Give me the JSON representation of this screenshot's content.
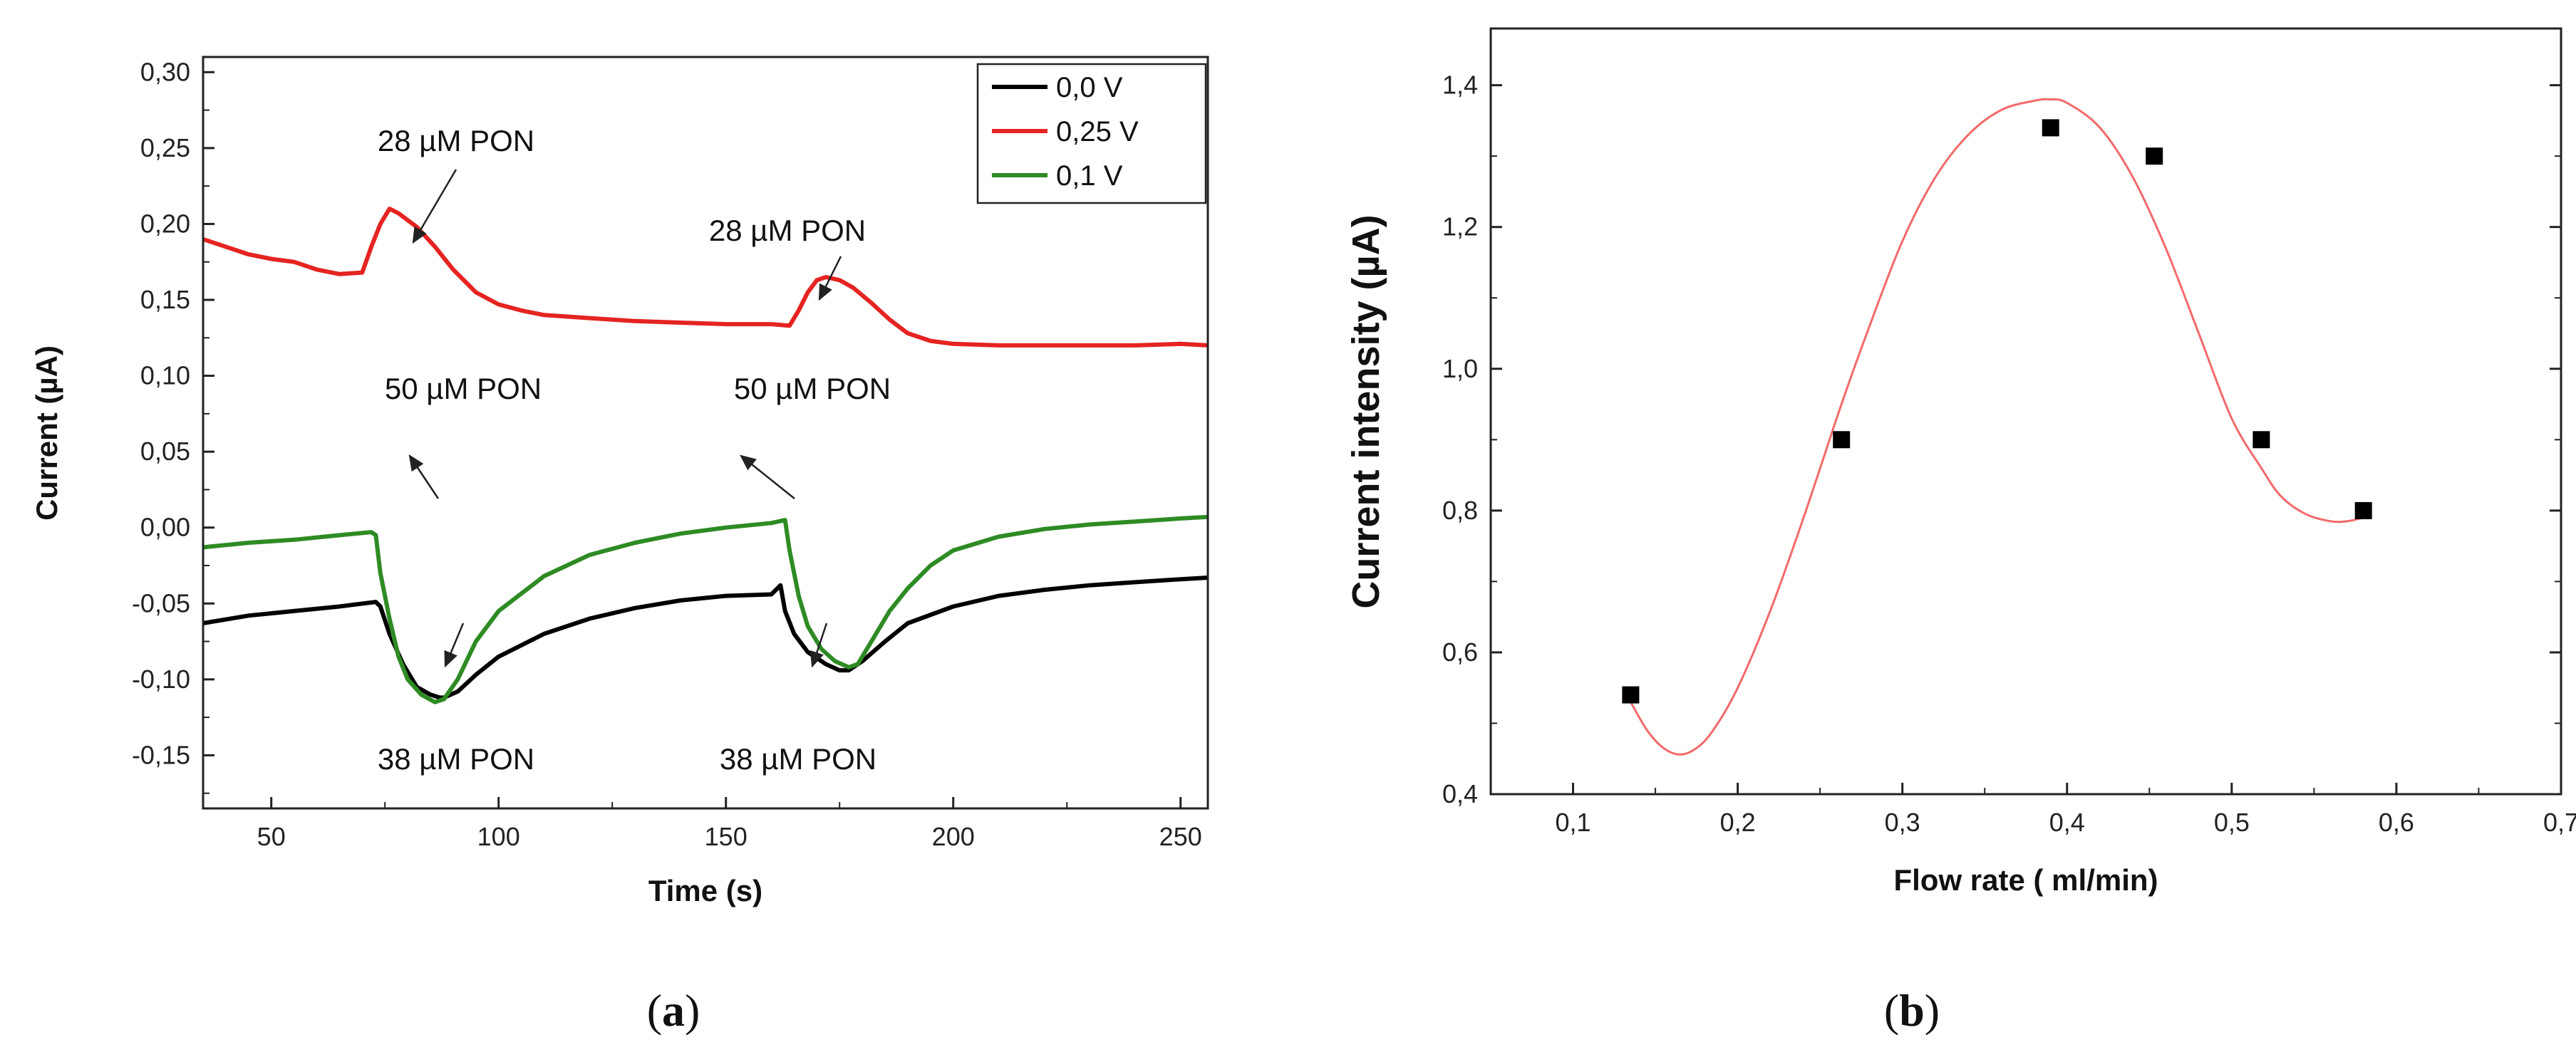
{
  "chart_data": [
    {
      "type": "line",
      "panel_label": "a",
      "xlabel": "Time (s)",
      "ylabel": "Current (µA)",
      "xlim": [
        35,
        256
      ],
      "ylim": [
        -0.185,
        0.31
      ],
      "xticks": [
        50,
        100,
        150,
        200,
        250
      ],
      "yticks": [
        -0.15,
        -0.1,
        -0.05,
        0.0,
        0.05,
        0.1,
        0.15,
        0.2,
        0.25,
        0.3
      ],
      "ytick_labels": [
        "-0,15",
        "-0,10",
        "-0,05",
        "0,00",
        "0,05",
        "0,10",
        "0,15",
        "0,20",
        "0,25",
        "0,30"
      ],
      "legend": {
        "position": "top-right",
        "entries": [
          "0,0 V",
          "0,25 V",
          "0,1 V"
        ]
      },
      "series": [
        {
          "name": "0,0 V",
          "color": "#000000",
          "x": [
            35,
            45,
            55,
            65,
            73,
            74,
            76,
            79,
            82,
            85,
            87,
            88,
            91,
            95,
            100,
            110,
            120,
            130,
            140,
            150,
            160,
            162,
            163,
            165,
            168,
            172,
            175,
            177,
            180,
            185,
            190,
            200,
            210,
            220,
            230,
            240,
            250,
            256
          ],
          "values": [
            -0.063,
            -0.058,
            -0.055,
            -0.052,
            -0.049,
            -0.052,
            -0.07,
            -0.09,
            -0.105,
            -0.11,
            -0.112,
            -0.112,
            -0.108,
            -0.097,
            -0.085,
            -0.07,
            -0.06,
            -0.053,
            -0.048,
            -0.045,
            -0.044,
            -0.038,
            -0.055,
            -0.07,
            -0.082,
            -0.09,
            -0.094,
            -0.094,
            -0.088,
            -0.075,
            -0.063,
            -0.052,
            -0.045,
            -0.041,
            -0.038,
            -0.036,
            -0.034,
            -0.033
          ]
        },
        {
          "name": "0,25 V",
          "color": "#e52421",
          "x": [
            35,
            45,
            50,
            55,
            60,
            65,
            70,
            72,
            74,
            76,
            78,
            82,
            86,
            90,
            95,
            100,
            105,
            110,
            120,
            130,
            140,
            150,
            160,
            164,
            166,
            168,
            170,
            172,
            175,
            178,
            182,
            186,
            190,
            195,
            200,
            210,
            220,
            230,
            240,
            250,
            256
          ],
          "values": [
            0.19,
            0.18,
            0.177,
            0.175,
            0.17,
            0.167,
            0.168,
            0.185,
            0.2,
            0.21,
            0.207,
            0.198,
            0.185,
            0.17,
            0.155,
            0.147,
            0.143,
            0.14,
            0.138,
            0.136,
            0.135,
            0.134,
            0.134,
            0.133,
            0.143,
            0.155,
            0.163,
            0.165,
            0.163,
            0.158,
            0.148,
            0.137,
            0.128,
            0.123,
            0.121,
            0.12,
            0.12,
            0.12,
            0.12,
            0.121,
            0.12
          ]
        },
        {
          "name": "0,1 V",
          "color": "#2e8b24",
          "x": [
            35,
            45,
            55,
            65,
            72,
            73,
            74,
            76,
            78,
            80,
            83,
            86,
            88,
            91,
            95,
            100,
            110,
            120,
            130,
            140,
            150,
            160,
            163,
            164,
            166,
            168,
            171,
            174,
            177,
            179,
            182,
            186,
            190,
            195,
            200,
            210,
            220,
            230,
            240,
            250,
            256
          ],
          "values": [
            -0.013,
            -0.01,
            -0.008,
            -0.005,
            -0.003,
            -0.005,
            -0.03,
            -0.06,
            -0.085,
            -0.1,
            -0.11,
            -0.115,
            -0.113,
            -0.1,
            -0.075,
            -0.055,
            -0.032,
            -0.018,
            -0.01,
            -0.004,
            0.0,
            0.003,
            0.005,
            -0.015,
            -0.045,
            -0.065,
            -0.08,
            -0.088,
            -0.092,
            -0.09,
            -0.075,
            -0.055,
            -0.04,
            -0.025,
            -0.015,
            -0.006,
            -0.001,
            0.002,
            0.004,
            0.006,
            0.007
          ]
        }
      ],
      "annotations": [
        {
          "text": "28 µM PON",
          "series": "0,25 V"
        },
        {
          "text": "28 µM PON",
          "series": "0,25 V"
        },
        {
          "text": "50 µM PON",
          "series": "0,1 V"
        },
        {
          "text": "50 µM PON",
          "series": "0,1 V"
        },
        {
          "text": "38 µM PON",
          "series": "0,0 V"
        },
        {
          "text": "38 µM PON",
          "series": "0,0 V"
        }
      ]
    },
    {
      "type": "scatter",
      "panel_label": "b",
      "xlabel": "Flow rate ( ml/min)",
      "ylabel": "Current intensity (µA)",
      "xlim": [
        0.05,
        0.7
      ],
      "ylim": [
        0.4,
        1.48
      ],
      "xticks": [
        0.1,
        0.2,
        0.3,
        0.4,
        0.5,
        0.6,
        0.7
      ],
      "xtick_labels": [
        "0,1",
        "0,2",
        "0,3",
        "0,4",
        "0,5",
        "0,6",
        "0,7"
      ],
      "yticks": [
        0.4,
        0.6,
        0.8,
        1.0,
        1.2,
        1.4
      ],
      "ytick_labels": [
        "0,4",
        "0,6",
        "0,8",
        "1,0",
        "1,2",
        "1,4"
      ],
      "points": {
        "x": [
          0.135,
          0.263,
          0.39,
          0.453,
          0.518,
          0.58
        ],
        "y": [
          0.54,
          0.9,
          1.34,
          1.3,
          0.9,
          0.8
        ]
      },
      "fit": {
        "color": "#f26a6a",
        "x": [
          0.135,
          0.145,
          0.155,
          0.165,
          0.175,
          0.185,
          0.2,
          0.22,
          0.24,
          0.263,
          0.28,
          0.3,
          0.32,
          0.34,
          0.36,
          0.38,
          0.39,
          0.4,
          0.42,
          0.44,
          0.46,
          0.48,
          0.5,
          0.518,
          0.53,
          0.545,
          0.56,
          0.57,
          0.58
        ],
        "y": [
          0.53,
          0.49,
          0.465,
          0.456,
          0.465,
          0.49,
          0.55,
          0.66,
          0.79,
          0.95,
          1.06,
          1.18,
          1.27,
          1.33,
          1.365,
          1.378,
          1.38,
          1.375,
          1.34,
          1.27,
          1.17,
          1.05,
          0.93,
          0.86,
          0.82,
          0.795,
          0.785,
          0.785,
          0.79
        ]
      }
    }
  ]
}
